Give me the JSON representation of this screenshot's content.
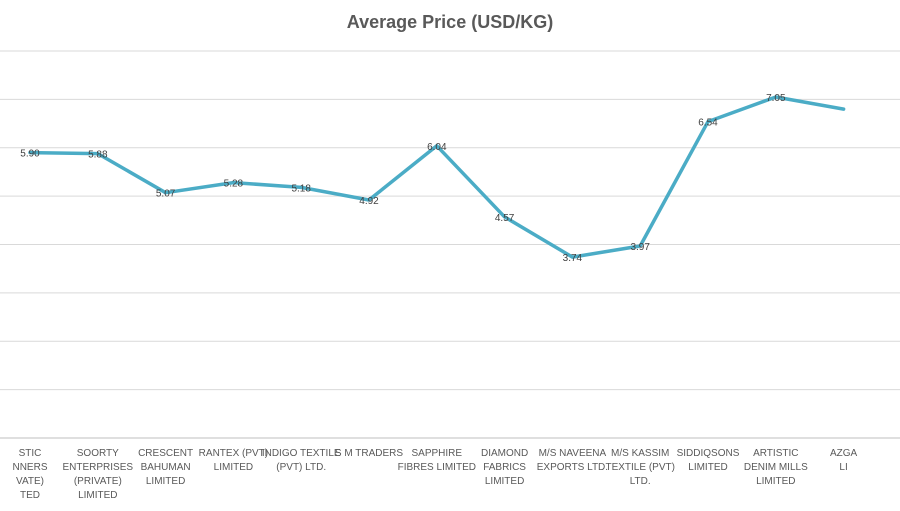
{
  "chart_data": {
    "type": "line",
    "title": "Average Price (USD/KG)",
    "xlabel": "",
    "ylabel": "",
    "categories": [
      "ARTISTIC SPINNERS (PRIVATE) LIMITED",
      "SOORTY ENTERPRISES (PRIVATE) LIMITED",
      "CRESCENT BAHUMAN LIMITED",
      "RANTEX (PVT) LIMITED",
      "INDIGO TEXTILE (PVT) LTD.",
      "S M TRADERS",
      "SAPPHIRE FIBRES LIMITED",
      "DIAMOND FABRICS LIMITED",
      "M/S NAVEENA EXPORTS LTD.",
      "M/S KASSIM TEXTILE (PVT) LTD.",
      "SIDDIQSONS LIMITED",
      "ARTISTIC DENIM MILLS LIMITED",
      "AZGARD NINE LIMITED"
    ],
    "category_lines": [
      [
        "STIC",
        "NNERS",
        "VATE)",
        "TED"
      ],
      [
        "SOORTY",
        "ENTERPRISES",
        "(PRIVATE)",
        "LIMITED"
      ],
      [
        "CRESCENT",
        "BAHUMAN",
        "LIMITED"
      ],
      [
        "RANTEX (PVT)",
        "LIMITED"
      ],
      [
        "INDIGO TEXTILE",
        "(PVT) LTD."
      ],
      [
        "S M TRADERS"
      ],
      [
        "SAPPHIRE",
        "FIBRES LIMITED"
      ],
      [
        "DIAMOND",
        "FABRICS",
        "LIMITED"
      ],
      [
        "M/S NAVEENA",
        "EXPORTS LTD."
      ],
      [
        "M/S KASSIM",
        "TEXTILE (PVT)",
        "LTD."
      ],
      [
        "SIDDIQSONS",
        "LIMITED"
      ],
      [
        "ARTISTIC",
        "DENIM MILLS",
        "LIMITED"
      ],
      [
        "AZGA",
        "LI"
      ]
    ],
    "series": [
      {
        "values": [
          5.9,
          5.88,
          5.07,
          5.28,
          5.18,
          4.92,
          6.04,
          4.57,
          3.74,
          3.97,
          6.54,
          7.05,
          6.8
        ],
        "labels": [
          "5.90",
          "5.88",
          "5.07",
          "5.28",
          "5.18",
          "4.92",
          "6.04",
          "4.57",
          "3.74",
          "3.97",
          "6.54",
          "7.05",
          ""
        ],
        "color": "#4bacc6"
      }
    ],
    "ylim": [
      0,
      8
    ],
    "grid": true,
    "legend": "none"
  }
}
